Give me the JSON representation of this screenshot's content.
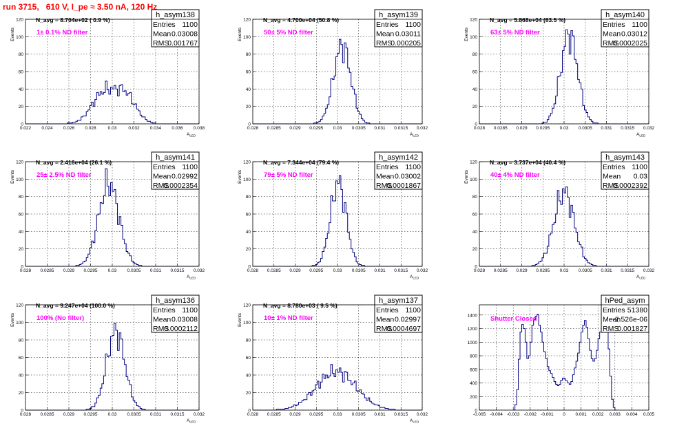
{
  "run_title": "run 3715,   610 V, I_pe ≈ 3.50 nA, 120 Hz",
  "chart_data": [
    {
      "type": "bar",
      "name": "h_asym138",
      "xlabel": "A_LED",
      "ylabel": "Events",
      "xlim": [
        0.022,
        0.038
      ],
      "ylim": [
        0,
        120
      ],
      "xticks": [
        "0.022",
        "0.024",
        "0.026",
        "0.028",
        "0.03",
        "0.032",
        "0.034",
        "0.036",
        "0.038"
      ],
      "yticks": [
        "0",
        "20",
        "40",
        "60",
        "80",
        "100",
        "120"
      ],
      "grid": true,
      "stats": {
        "entries": "1100",
        "mean": "0.03008",
        "rms": "0.001767"
      },
      "n_avg": "N_avg = 8.704e+02 ( 0.9 %)",
      "filter": "1± 0.1% ND filter",
      "gauss": {
        "mu": 0.03008,
        "sigma": 0.001767,
        "peak": 40,
        "bimodal": true
      }
    },
    {
      "type": "bar",
      "name": "h_asym139",
      "xlabel": "A_LED",
      "ylabel": "Events",
      "xlim": [
        0.028,
        0.032
      ],
      "ylim": [
        0,
        120
      ],
      "xticks": [
        "0.028",
        "0.0285",
        "0.029",
        "0.0295",
        "0.03",
        "0.0305",
        "0.031",
        "0.0315",
        "0.032"
      ],
      "yticks": [
        "0",
        "20",
        "40",
        "60",
        "80",
        "100",
        "120"
      ],
      "grid": true,
      "stats": {
        "entries": "1100",
        "mean": "0.03011",
        "rms": "0.000205"
      },
      "n_avg": "N_avg = 4.700e+04 (50.8 %)",
      "filter": "50± 5% ND filter",
      "gauss": {
        "mu": 0.03011,
        "sigma": 0.000205,
        "peak": 90
      }
    },
    {
      "type": "bar",
      "name": "h_asym140",
      "xlabel": "A_LED",
      "ylabel": "Events",
      "xlim": [
        0.028,
        0.032
      ],
      "ylim": [
        0,
        120
      ],
      "xticks": [
        "0.028",
        "0.0285",
        "0.029",
        "0.0295",
        "0.03",
        "0.0305",
        "0.031",
        "0.0315",
        "0.032"
      ],
      "yticks": [
        "0",
        "20",
        "40",
        "60",
        "80",
        "100",
        "120"
      ],
      "grid": true,
      "stats": {
        "entries": "1100",
        "mean": "0.03012",
        "rms": "0.0002025"
      },
      "n_avg": "N_avg = 5.868e+04 (63.5 %)",
      "filter": "63± 5% ND filter",
      "gauss": {
        "mu": 0.03012,
        "sigma": 0.0002025,
        "peak": 102
      }
    },
    {
      "type": "bar",
      "name": "h_asym141",
      "xlabel": "A_LED",
      "ylabel": "Events",
      "xlim": [
        0.028,
        0.032
      ],
      "ylim": [
        0,
        120
      ],
      "xticks": [
        "0.028",
        "0.0285",
        "0.029",
        "0.0295",
        "0.03",
        "0.0305",
        "0.031",
        "0.0315",
        "0.032"
      ],
      "yticks": [
        "0",
        "20",
        "40",
        "60",
        "80",
        "100",
        "120"
      ],
      "grid": true,
      "stats": {
        "entries": "1100",
        "mean": "0.02992",
        "rms": "0.0002354"
      },
      "n_avg": "N_avg = 2.416e+04 (26.1 %)",
      "filter": "25± 2.5% ND filter",
      "gauss": {
        "mu": 0.02992,
        "sigma": 0.0002354,
        "peak": 95
      }
    },
    {
      "type": "bar",
      "name": "h_asym142",
      "xlabel": "A_LED",
      "ylabel": "Events",
      "xlim": [
        0.028,
        0.032
      ],
      "ylim": [
        0,
        120
      ],
      "xticks": [
        "0.028",
        "0.0285",
        "0.029",
        "0.0295",
        "0.03",
        "0.0305",
        "0.031",
        "0.0315",
        "0.032"
      ],
      "yticks": [
        "0",
        "20",
        "40",
        "60",
        "80",
        "100",
        "120"
      ],
      "grid": true,
      "stats": {
        "entries": "1100",
        "mean": "0.03002",
        "rms": "0.0001867"
      },
      "n_avg": "N_avg = 7.344e+04 (79.4 %)",
      "filter": "79± 5% ND filter",
      "gauss": {
        "mu": 0.03002,
        "sigma": 0.0001867,
        "peak": 96
      }
    },
    {
      "type": "bar",
      "name": "h_asym143",
      "xlabel": "A_LED",
      "ylabel": "Events",
      "xlim": [
        0.028,
        0.032
      ],
      "ylim": [
        0,
        120
      ],
      "xticks": [
        "0.028",
        "0.0285",
        "0.029",
        "0.0295",
        "0.03",
        "0.0305",
        "0.031",
        "0.0315",
        "0.032"
      ],
      "yticks": [
        "0",
        "20",
        "40",
        "60",
        "80",
        "100",
        "120"
      ],
      "grid": true,
      "stats": {
        "entries": "1100",
        "mean": "0.03",
        "rms": "0.0002392"
      },
      "n_avg": "N_avg = 3.737e+04 (40.4 %)",
      "filter": "40± 4% ND filter",
      "gauss": {
        "mu": 0.03,
        "sigma": 0.0002392,
        "peak": 85
      }
    },
    {
      "type": "bar",
      "name": "h_asym136",
      "xlabel": "A_LED",
      "ylabel": "Events",
      "xlim": [
        0.028,
        0.032
      ],
      "ylim": [
        0,
        120
      ],
      "xticks": [
        "0.028",
        "0.0285",
        "0.029",
        "0.0295",
        "0.03",
        "0.0305",
        "0.031",
        "0.0315",
        "0.032"
      ],
      "yticks": [
        "0",
        "20",
        "40",
        "60",
        "80",
        "100",
        "120"
      ],
      "grid": true,
      "stats": {
        "entries": "1100",
        "mean": "0.03008",
        "rms": "0.0002112"
      },
      "n_avg": "N_avg = 9.247e+04 (100.0 %)",
      "filter": "100% (No filter)",
      "gauss": {
        "mu": 0.03008,
        "sigma": 0.0002112,
        "peak": 90
      }
    },
    {
      "type": "bar",
      "name": "h_asym137",
      "xlabel": "A_LED",
      "ylabel": "Events",
      "xlim": [
        0.028,
        0.032
      ],
      "ylim": [
        0,
        120
      ],
      "xticks": [
        "0.028",
        "0.0285",
        "0.029",
        "0.0295",
        "0.03",
        "0.0305",
        "0.031",
        "0.0315",
        "0.032"
      ],
      "yticks": [
        "0",
        "20",
        "40",
        "60",
        "80",
        "100",
        "120"
      ],
      "grid": true,
      "stats": {
        "entries": "1100",
        "mean": "0.02997",
        "rms": "0.0004697"
      },
      "n_avg": "N_avg = 8.780e+03 ( 9.5 %)",
      "filter": "10± 1% ND filter",
      "gauss": {
        "mu": 0.02997,
        "sigma": 0.0004697,
        "peak": 44
      }
    },
    {
      "type": "bar",
      "name": "hPed_asym",
      "xlabel": "",
      "ylabel": "",
      "xlim": [
        -0.005,
        0.005
      ],
      "ylim": [
        0,
        1550
      ],
      "xticks": [
        "-0.005",
        "-0.004",
        "-0.003",
        "-0.002",
        "-0.001",
        "0",
        "0.001",
        "0.002",
        "0.003",
        "0.004",
        "0.005"
      ],
      "yticks": [
        "0",
        "200",
        "400",
        "600",
        "800",
        "1000",
        "1200",
        "1400"
      ],
      "grid": true,
      "stats": {
        "entries": "51380",
        "mean": "-2.526e-06",
        "rms": "0.001827"
      },
      "n_avg": "",
      "filter": "Shutter Closed",
      "pedestal": [
        [
          -0.003,
          0
        ],
        [
          -0.0029,
          80
        ],
        [
          -0.0028,
          300
        ],
        [
          -0.0027,
          750
        ],
        [
          -0.0026,
          1150
        ],
        [
          -0.0025,
          1260
        ],
        [
          -0.0024,
          1200
        ],
        [
          -0.0023,
          1000
        ],
        [
          -0.0022,
          760
        ],
        [
          -0.0021,
          800
        ],
        [
          -0.002,
          1000
        ],
        [
          -0.0019,
          1250
        ],
        [
          -0.0018,
          1330
        ],
        [
          -0.0017,
          1380
        ],
        [
          -0.0016,
          1410
        ],
        [
          -0.0015,
          1250
        ],
        [
          -0.0014,
          1150
        ],
        [
          -0.0013,
          1000
        ],
        [
          -0.0012,
          860
        ],
        [
          -0.0011,
          760
        ],
        [
          -0.001,
          640
        ],
        [
          -0.0009,
          580
        ],
        [
          -0.0008,
          540
        ],
        [
          -0.0007,
          480
        ],
        [
          -0.0006,
          420
        ],
        [
          -0.0005,
          380
        ],
        [
          -0.0004,
          360
        ],
        [
          -0.0003,
          380
        ],
        [
          -0.0002,
          440
        ],
        [
          -0.0001,
          470
        ],
        [
          0.0,
          460
        ],
        [
          0.0001,
          430
        ],
        [
          0.0002,
          400
        ],
        [
          0.0003,
          380
        ],
        [
          0.0004,
          420
        ],
        [
          0.0005,
          520
        ],
        [
          0.0006,
          620
        ],
        [
          0.0007,
          720
        ],
        [
          0.0008,
          840
        ],
        [
          0.0009,
          1000
        ],
        [
          0.001,
          1150
        ],
        [
          0.0011,
          1250
        ],
        [
          0.0012,
          1320
        ],
        [
          0.0013,
          1220
        ],
        [
          0.0014,
          1050
        ],
        [
          0.0015,
          880
        ],
        [
          0.0016,
          760
        ],
        [
          0.0017,
          720
        ],
        [
          0.0018,
          760
        ],
        [
          0.0019,
          880
        ],
        [
          0.002,
          1050
        ],
        [
          0.0021,
          1150
        ],
        [
          0.0022,
          1280
        ],
        [
          0.0023,
          1320
        ],
        [
          0.0024,
          1260
        ],
        [
          0.0025,
          1200
        ],
        [
          0.0026,
          900
        ],
        [
          0.0027,
          500
        ],
        [
          0.0028,
          160
        ],
        [
          0.0029,
          40
        ],
        [
          0.003,
          0
        ]
      ]
    }
  ]
}
